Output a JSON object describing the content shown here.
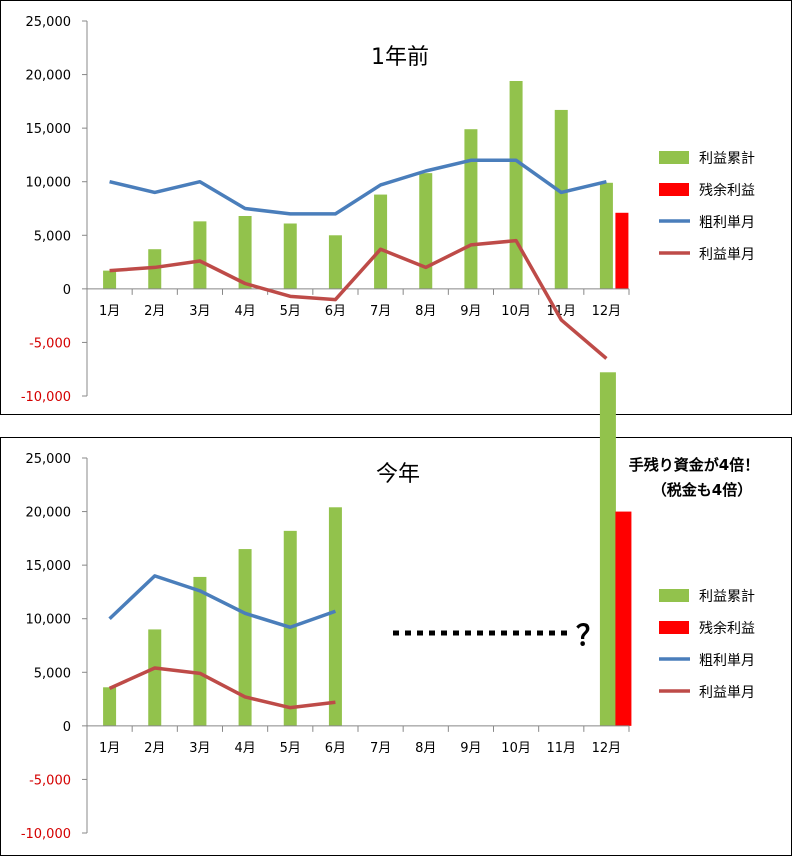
{
  "colors": {
    "cumulative": "#92c24c",
    "residual": "#ff0000",
    "gross": "#4a7ebb",
    "profit": "#be4b48",
    "negative_tick": "#d40000"
  },
  "chart_data": [
    {
      "type": "bar",
      "title": "1年前",
      "categories": [
        "1月",
        "2月",
        "3月",
        "4月",
        "5月",
        "6月",
        "7月",
        "8月",
        "9月",
        "10月",
        "11月",
        "12月"
      ],
      "ylim": [
        -10000,
        25000
      ],
      "yticks": [
        "25,000",
        "20,000",
        "15,000",
        "10,000",
        "5,000",
        "0",
        "-5,000",
        "-10,000"
      ],
      "grid": false,
      "legend_position": "right",
      "legend": [
        "利益累計",
        "残余利益",
        "粗利単月",
        "利益単月"
      ],
      "series": [
        {
          "name": "利益累計",
          "type": "bar",
          "values": [
            1700,
            3700,
            6300,
            6800,
            6100,
            5000,
            8800,
            10800,
            14900,
            19400,
            16700,
            9900
          ]
        },
        {
          "name": "残余利益",
          "type": "bar",
          "values": [
            null,
            null,
            null,
            null,
            null,
            null,
            null,
            null,
            null,
            null,
            null,
            7100
          ]
        },
        {
          "name": "粗利単月",
          "type": "line",
          "values": [
            10000,
            9000,
            10000,
            7500,
            7000,
            7000,
            9700,
            11000,
            12000,
            12000,
            9000,
            10000
          ]
        },
        {
          "name": "利益単月",
          "type": "line",
          "values": [
            1700,
            2000,
            2600,
            500,
            -700,
            -1000,
            3700,
            2000,
            4100,
            4500,
            -2900,
            -6500
          ]
        }
      ]
    },
    {
      "type": "bar",
      "title": "今年",
      "categories": [
        "1月",
        "2月",
        "3月",
        "4月",
        "5月",
        "6月",
        "7月",
        "8月",
        "9月",
        "10月",
        "11月",
        "12月"
      ],
      "ylim": [
        -10000,
        25000
      ],
      "yticks": [
        "25,000",
        "20,000",
        "15,000",
        "10,000",
        "5,000",
        "0",
        "-5,000",
        "-10,000"
      ],
      "grid": false,
      "legend_position": "right",
      "legend": [
        "利益累計",
        "残余利益",
        "粗利単月",
        "利益単月"
      ],
      "series": [
        {
          "name": "利益累計",
          "type": "bar",
          "values": [
            3600,
            9000,
            13900,
            16500,
            18200,
            20400,
            null,
            null,
            null,
            null,
            null,
            null
          ]
        },
        {
          "name": "粗利単月",
          "type": "line",
          "values": [
            10000,
            14000,
            12600,
            10500,
            9200,
            10700,
            null,
            null,
            null,
            null,
            null,
            null
          ]
        },
        {
          "name": "利益単月",
          "type": "line",
          "values": [
            3500,
            5400,
            4900,
            2700,
            1700,
            2200,
            null,
            null,
            null,
            null,
            null,
            null
          ]
        }
      ],
      "overlay_bars": [
        {
          "series": "利益累計",
          "value": 33000
        },
        {
          "series": "残余利益",
          "value": 20000
        }
      ],
      "annotations": [
        "手残り資金が4倍！",
        "（税金も4倍）",
        "？"
      ]
    }
  ]
}
